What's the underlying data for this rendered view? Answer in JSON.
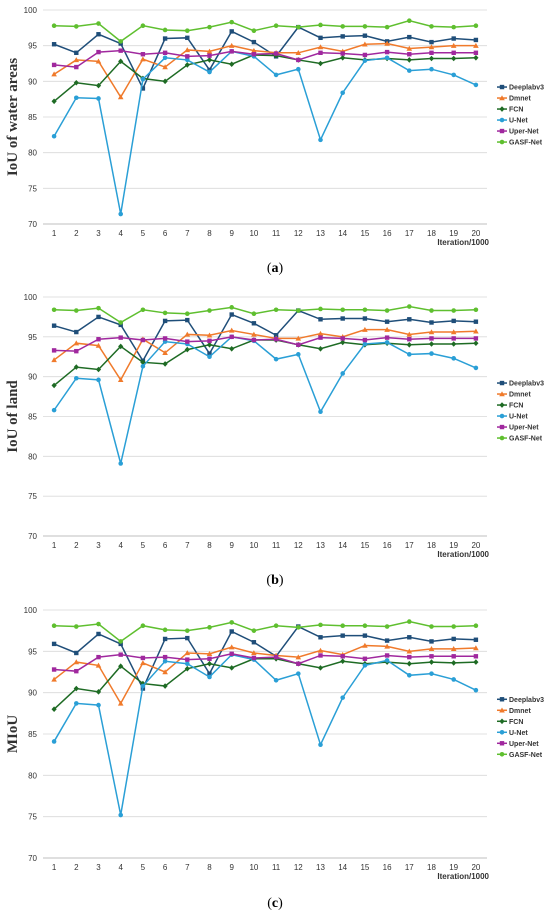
{
  "chart_data": [
    {
      "type": "line",
      "caption_letter": "a",
      "ylabel": "IoU of water areas",
      "xlabel": "Iteration/1000",
      "ylim": [
        70,
        100
      ],
      "yticks": [
        70,
        75,
        80,
        85,
        90,
        95,
        100
      ],
      "x": [
        1,
        2,
        3,
        4,
        5,
        6,
        7,
        8,
        9,
        10,
        11,
        12,
        13,
        14,
        15,
        16,
        17,
        18,
        19,
        20
      ],
      "grid": "horizontal",
      "legend": "right",
      "series": [
        {
          "name": "Deeplabv3",
          "color": "#1f4e79",
          "marker": "square",
          "values": [
            95.2,
            94.0,
            96.6,
            95.3,
            89.0,
            96.0,
            96.1,
            91.6,
            97.0,
            95.5,
            93.5,
            97.6,
            96.1,
            96.3,
            96.4,
            95.6,
            96.2,
            95.5,
            96.0,
            95.8
          ]
        },
        {
          "name": "Dmnet",
          "color": "#f07a2b",
          "marker": "triangle",
          "values": [
            91.0,
            93.0,
            92.8,
            87.8,
            93.1,
            92.0,
            94.4,
            94.2,
            95.0,
            94.3,
            94.0,
            94.0,
            94.8,
            94.2,
            95.2,
            95.3,
            94.6,
            94.8,
            95.0,
            95.0
          ]
        },
        {
          "name": "FCN",
          "color": "#1e6b24",
          "marker": "diamond",
          "values": [
            87.2,
            89.8,
            89.4,
            92.8,
            90.4,
            90.0,
            92.3,
            93.0,
            92.4,
            93.7,
            93.6,
            93.0,
            92.5,
            93.3,
            93.0,
            93.2,
            93.0,
            93.2,
            93.2,
            93.3
          ]
        },
        {
          "name": "U-Net",
          "color": "#2a9fd6",
          "marker": "circle",
          "values": [
            82.3,
            87.7,
            87.6,
            71.4,
            90.3,
            93.3,
            93.0,
            91.3,
            94.2,
            93.5,
            90.9,
            91.7,
            81.8,
            88.4,
            92.9,
            93.3,
            91.5,
            91.7,
            90.9,
            89.5
          ]
        },
        {
          "name": "Uper-Net",
          "color": "#a0289e",
          "marker": "square",
          "values": [
            92.3,
            92.0,
            94.1,
            94.3,
            93.8,
            94.0,
            93.5,
            93.6,
            94.2,
            93.8,
            93.9,
            93.0,
            94.0,
            93.9,
            93.7,
            94.1,
            93.8,
            94.0,
            94.0,
            94.0
          ]
        },
        {
          "name": "GASF-Net",
          "color": "#5fbf2f",
          "marker": "circle",
          "values": [
            97.8,
            97.7,
            98.1,
            95.6,
            97.8,
            97.2,
            97.1,
            97.6,
            98.3,
            97.1,
            97.8,
            97.6,
            97.9,
            97.7,
            97.7,
            97.6,
            98.5,
            97.7,
            97.6,
            97.8
          ]
        }
      ]
    },
    {
      "type": "line",
      "caption_letter": "b",
      "ylabel": "IoU of land",
      "xlabel": "Iteration/1000",
      "ylim": [
        70,
        100
      ],
      "yticks": [
        70,
        75,
        80,
        85,
        90,
        95,
        100
      ],
      "x": [
        1,
        2,
        3,
        4,
        5,
        6,
        7,
        8,
        9,
        10,
        11,
        12,
        13,
        14,
        15,
        16,
        17,
        18,
        19,
        20
      ],
      "grid": "horizontal",
      "legend": "right",
      "series": [
        {
          "name": "Deeplabv3",
          "color": "#1f4e79",
          "marker": "square",
          "values": [
            96.4,
            95.6,
            97.5,
            96.5,
            92.0,
            97.0,
            97.1,
            92.9,
            97.8,
            96.7,
            95.2,
            98.3,
            97.2,
            97.3,
            97.3,
            96.9,
            97.2,
            96.8,
            97.0,
            96.9
          ]
        },
        {
          "name": "Dmnet",
          "color": "#f07a2b",
          "marker": "triangle",
          "values": [
            92.1,
            94.2,
            93.9,
            89.6,
            94.7,
            93.0,
            95.3,
            95.2,
            95.8,
            95.3,
            94.8,
            94.8,
            95.4,
            95.0,
            95.9,
            95.9,
            95.3,
            95.6,
            95.6,
            95.7
          ]
        },
        {
          "name": "FCN",
          "color": "#1e6b24",
          "marker": "diamond",
          "values": [
            88.9,
            91.2,
            90.9,
            93.8,
            91.8,
            91.6,
            93.4,
            94.0,
            93.5,
            94.6,
            94.6,
            94.0,
            93.5,
            94.3,
            94.0,
            94.2,
            94.0,
            94.1,
            94.1,
            94.2
          ]
        },
        {
          "name": "U-Net",
          "color": "#2a9fd6",
          "marker": "circle",
          "values": [
            85.8,
            89.8,
            89.6,
            79.1,
            91.3,
            94.4,
            94.1,
            92.5,
            95.0,
            94.5,
            92.2,
            92.8,
            85.6,
            90.4,
            94.1,
            94.3,
            92.8,
            92.9,
            92.3,
            91.1
          ]
        },
        {
          "name": "Uper-Net",
          "color": "#a0289e",
          "marker": "square",
          "values": [
            93.3,
            93.2,
            94.7,
            94.9,
            94.6,
            94.8,
            94.4,
            94.5,
            95.0,
            94.6,
            94.7,
            94.0,
            94.9,
            94.8,
            94.6,
            94.9,
            94.7,
            94.8,
            94.8,
            94.8
          ]
        },
        {
          "name": "GASF-Net",
          "color": "#5fbf2f",
          "marker": "circle",
          "values": [
            98.4,
            98.3,
            98.6,
            96.8,
            98.4,
            98.0,
            97.9,
            98.3,
            98.7,
            97.9,
            98.4,
            98.3,
            98.5,
            98.4,
            98.4,
            98.3,
            98.8,
            98.3,
            98.3,
            98.4
          ]
        }
      ]
    },
    {
      "type": "line",
      "caption_letter": "c",
      "ylabel": "MIoU",
      "xlabel": "Iteration/1000",
      "ylim": [
        70,
        100
      ],
      "yticks": [
        70,
        75,
        80,
        85,
        90,
        95,
        100
      ],
      "x": [
        1,
        2,
        3,
        4,
        5,
        6,
        7,
        8,
        9,
        10,
        11,
        12,
        13,
        14,
        15,
        16,
        17,
        18,
        19,
        20
      ],
      "grid": "horizontal",
      "legend": "right",
      "series": [
        {
          "name": "Deeplabv3",
          "color": "#1f4e79",
          "marker": "square",
          "values": [
            95.9,
            94.8,
            97.1,
            95.9,
            90.5,
            96.5,
            96.6,
            92.3,
            97.4,
            96.1,
            94.4,
            98.0,
            96.7,
            96.9,
            96.9,
            96.3,
            96.7,
            96.2,
            96.5,
            96.4
          ]
        },
        {
          "name": "Dmnet",
          "color": "#f07a2b",
          "marker": "triangle",
          "values": [
            91.6,
            93.7,
            93.3,
            88.7,
            93.6,
            92.5,
            94.8,
            94.7,
            95.5,
            94.8,
            94.5,
            94.3,
            95.1,
            94.6,
            95.7,
            95.6,
            95.0,
            95.3,
            95.3,
            95.4
          ]
        },
        {
          "name": "FCN",
          "color": "#1e6b24",
          "marker": "diamond",
          "values": [
            88.0,
            90.5,
            90.1,
            93.2,
            91.1,
            90.8,
            92.9,
            93.5,
            93.0,
            94.1,
            94.1,
            93.5,
            93.0,
            93.8,
            93.5,
            93.7,
            93.5,
            93.7,
            93.6,
            93.7
          ]
        },
        {
          "name": "U-Net",
          "color": "#2a9fd6",
          "marker": "circle",
          "values": [
            84.1,
            88.7,
            88.5,
            75.2,
            90.8,
            93.8,
            93.5,
            91.9,
            94.6,
            94.0,
            91.5,
            92.3,
            83.7,
            89.4,
            93.3,
            93.9,
            92.1,
            92.3,
            91.6,
            90.3
          ]
        },
        {
          "name": "Uper-Net",
          "color": "#a0289e",
          "marker": "square",
          "values": [
            92.8,
            92.6,
            94.3,
            94.6,
            94.2,
            94.3,
            94.0,
            94.1,
            94.7,
            94.2,
            94.3,
            93.5,
            94.5,
            94.4,
            94.1,
            94.5,
            94.3,
            94.4,
            94.4,
            94.4
          ]
        },
        {
          "name": "GASF-Net",
          "color": "#5fbf2f",
          "marker": "circle",
          "values": [
            98.1,
            98.0,
            98.3,
            96.2,
            98.1,
            97.6,
            97.5,
            97.9,
            98.5,
            97.5,
            98.1,
            97.9,
            98.2,
            98.1,
            98.1,
            98.0,
            98.6,
            98.0,
            98.0,
            98.1
          ]
        }
      ]
    }
  ]
}
